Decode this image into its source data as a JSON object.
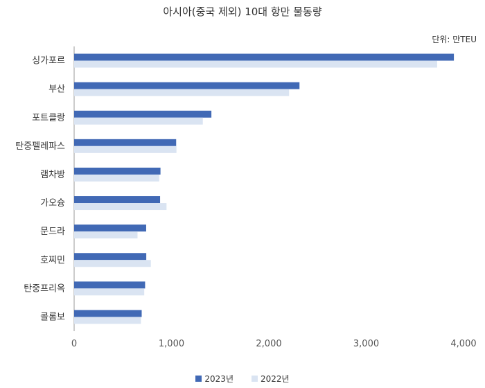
{
  "chart_data": {
    "type": "bar",
    "orientation": "horizontal",
    "title": "아시아(중국 제외) 10대 항만 물동량",
    "unit_label": "단위: 만TEU",
    "categories": [
      "싱가포르",
      "부산",
      "포트클랑",
      "탄중펠레파스",
      "램차방",
      "가오슝",
      "문드라",
      "호찌민",
      "탄중프리옥",
      "콜롬보"
    ],
    "series": [
      {
        "name": "2023년",
        "color": "#4169b5",
        "values": [
          3901,
          2315,
          1410,
          1048,
          887,
          883,
          740,
          741,
          729,
          694
        ]
      },
      {
        "name": "2022년",
        "color": "#dae4f2",
        "values": [
          3729,
          2208,
          1322,
          1051,
          874,
          949,
          651,
          788,
          720,
          686
        ]
      }
    ],
    "xlim": [
      0,
      4000
    ],
    "xticks": [
      "0",
      "1,000",
      "2,000",
      "3,000",
      "4,000"
    ],
    "grid": false,
    "legend_position": "bottom"
  }
}
